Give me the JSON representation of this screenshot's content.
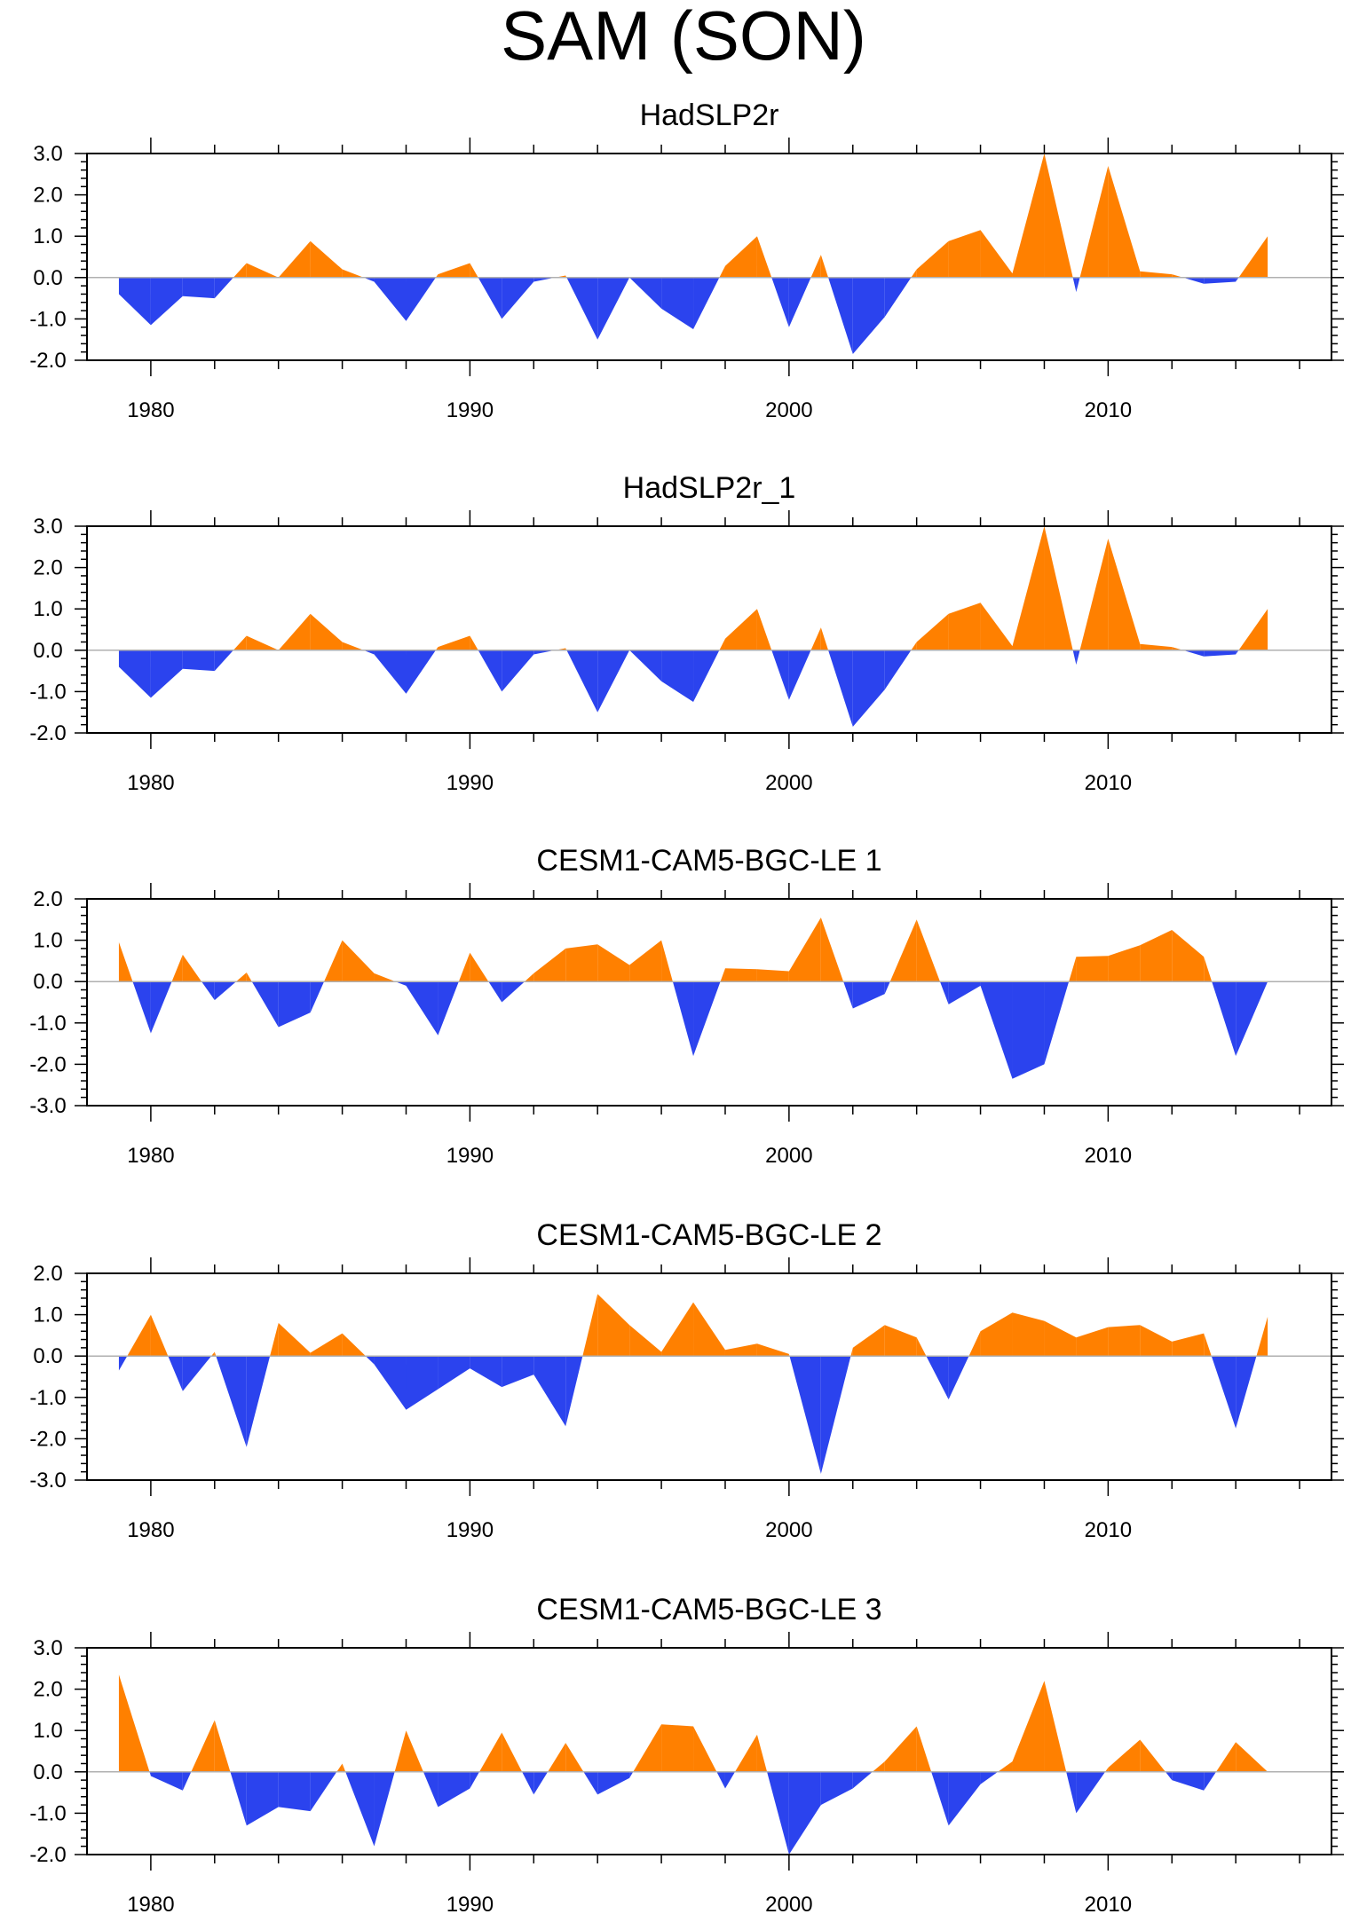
{
  "figure_title": "SAM (SON)",
  "colors": {
    "positive": "#FF8000",
    "negative": "#2B43EE",
    "axis": "#000000",
    "zero_line": "#B0B0B0"
  },
  "chart_data": [
    {
      "type": "area",
      "title": "HadSLP2r",
      "x": [
        1979,
        1980,
        1981,
        1982,
        1983,
        1984,
        1985,
        1986,
        1987,
        1988,
        1989,
        1990,
        1991,
        1992,
        1993,
        1994,
        1995,
        1996,
        1997,
        1998,
        1999,
        2000,
        2001,
        2002,
        2003,
        2004,
        2005,
        2006,
        2007,
        2008,
        2009,
        2010,
        2011,
        2012,
        2013,
        2014,
        2015
      ],
      "values": [
        -0.4,
        -1.15,
        -0.45,
        -0.5,
        0.35,
        0.0,
        0.88,
        0.2,
        -0.1,
        -1.05,
        0.08,
        0.35,
        -1.0,
        -0.1,
        0.05,
        -1.5,
        0.0,
        -0.75,
        -1.25,
        0.28,
        1.0,
        -1.2,
        0.55,
        -1.85,
        -0.95,
        0.2,
        0.88,
        1.15,
        0.1,
        3.0,
        -0.35,
        2.7,
        0.15,
        0.08,
        -0.15,
        -0.1,
        1.0
      ],
      "xlim": [
        1978,
        2017
      ],
      "ylim": [
        -2.0,
        3.0
      ],
      "yticks": [
        "3.0",
        "2.0",
        "1.0",
        "0.0",
        "-1.0",
        "-2.0"
      ],
      "ytick_values": [
        3,
        2,
        1,
        0,
        -1,
        -2
      ],
      "xticks": [
        "1980",
        "1990",
        "2000",
        "2010"
      ],
      "xtick_values": [
        1980,
        1990,
        2000,
        2010
      ]
    },
    {
      "type": "area",
      "title": "HadSLP2r_1",
      "x": [
        1979,
        1980,
        1981,
        1982,
        1983,
        1984,
        1985,
        1986,
        1987,
        1988,
        1989,
        1990,
        1991,
        1992,
        1993,
        1994,
        1995,
        1996,
        1997,
        1998,
        1999,
        2000,
        2001,
        2002,
        2003,
        2004,
        2005,
        2006,
        2007,
        2008,
        2009,
        2010,
        2011,
        2012,
        2013,
        2014,
        2015
      ],
      "values": [
        -0.4,
        -1.15,
        -0.45,
        -0.5,
        0.35,
        0.0,
        0.88,
        0.2,
        -0.1,
        -1.05,
        0.08,
        0.35,
        -1.0,
        -0.1,
        0.05,
        -1.5,
        0.0,
        -0.75,
        -1.25,
        0.28,
        1.0,
        -1.2,
        0.55,
        -1.85,
        -0.95,
        0.2,
        0.88,
        1.15,
        0.1,
        3.0,
        -0.35,
        2.7,
        0.15,
        0.08,
        -0.15,
        -0.1,
        1.0
      ],
      "xlim": [
        1978,
        2017
      ],
      "ylim": [
        -2.0,
        3.0
      ],
      "yticks": [
        "3.0",
        "2.0",
        "1.0",
        "0.0",
        "-1.0",
        "-2.0"
      ],
      "ytick_values": [
        3,
        2,
        1,
        0,
        -1,
        -2
      ],
      "xticks": [
        "1980",
        "1990",
        "2000",
        "2010"
      ],
      "xtick_values": [
        1980,
        1990,
        2000,
        2010
      ]
    },
    {
      "type": "area",
      "title": "CESM1-CAM5-BGC-LE 1",
      "x": [
        1979,
        1980,
        1981,
        1982,
        1983,
        1984,
        1985,
        1986,
        1987,
        1988,
        1989,
        1990,
        1991,
        1992,
        1993,
        1994,
        1995,
        1996,
        1997,
        1998,
        1999,
        2000,
        2001,
        2002,
        2003,
        2004,
        2005,
        2006,
        2007,
        2008,
        2009,
        2010,
        2011,
        2012,
        2013,
        2014,
        2015
      ],
      "values": [
        0.95,
        -1.25,
        0.65,
        -0.45,
        0.22,
        -1.1,
        -0.75,
        1.0,
        0.2,
        -0.1,
        -1.3,
        0.7,
        -0.5,
        0.2,
        0.8,
        0.9,
        0.4,
        1.0,
        -1.8,
        0.32,
        0.3,
        0.25,
        1.55,
        -0.65,
        -0.3,
        1.5,
        -0.55,
        -0.1,
        -2.35,
        -2.0,
        0.6,
        0.62,
        0.88,
        1.25,
        0.6,
        -1.8,
        0.0
      ],
      "xlim": [
        1978,
        2017
      ],
      "ylim": [
        -3.0,
        2.0
      ],
      "yticks": [
        "2.0",
        "1.0",
        "0.0",
        "-1.0",
        "-2.0",
        "-3.0"
      ],
      "ytick_values": [
        2,
        1,
        0,
        -1,
        -2,
        -3
      ],
      "xticks": [
        "1980",
        "1990",
        "2000",
        "2010"
      ],
      "xtick_values": [
        1980,
        1990,
        2000,
        2010
      ]
    },
    {
      "type": "area",
      "title": "CESM1-CAM5-BGC-LE 2",
      "x": [
        1979,
        1980,
        1981,
        1982,
        1983,
        1984,
        1985,
        1986,
        1987,
        1988,
        1989,
        1990,
        1991,
        1992,
        1993,
        1994,
        1995,
        1996,
        1997,
        1998,
        1999,
        2000,
        2001,
        2002,
        2003,
        2004,
        2005,
        2006,
        2007,
        2008,
        2009,
        2010,
        2011,
        2012,
        2013,
        2014,
        2015
      ],
      "values": [
        -0.35,
        1.0,
        -0.85,
        0.1,
        -2.2,
        0.8,
        0.08,
        0.55,
        -0.2,
        -1.3,
        -0.8,
        -0.3,
        -0.75,
        -0.45,
        -1.7,
        1.5,
        0.75,
        0.1,
        1.3,
        0.15,
        0.3,
        0.05,
        -2.85,
        0.2,
        0.75,
        0.45,
        -1.05,
        0.6,
        1.05,
        0.85,
        0.45,
        0.7,
        0.75,
        0.35,
        0.55,
        -1.75,
        0.95
      ],
      "xlim": [
        1978,
        2017
      ],
      "ylim": [
        -3.0,
        2.0
      ],
      "yticks": [
        "2.0",
        "1.0",
        "0.0",
        "-1.0",
        "-2.0",
        "-3.0"
      ],
      "ytick_values": [
        2,
        1,
        0,
        -1,
        -2,
        -3
      ],
      "xticks": [
        "1980",
        "1990",
        "2000",
        "2010"
      ],
      "xtick_values": [
        1980,
        1990,
        2000,
        2010
      ]
    },
    {
      "type": "area",
      "title": "CESM1-CAM5-BGC-LE 3",
      "x": [
        1979,
        1980,
        1981,
        1982,
        1983,
        1984,
        1985,
        1986,
        1987,
        1988,
        1989,
        1990,
        1991,
        1992,
        1993,
        1994,
        1995,
        1996,
        1997,
        1998,
        1999,
        2000,
        2001,
        2002,
        2003,
        2004,
        2005,
        2006,
        2007,
        2008,
        2009,
        2010,
        2011,
        2012,
        2013,
        2014,
        2015
      ],
      "values": [
        2.35,
        -0.1,
        -0.45,
        1.25,
        -1.3,
        -0.85,
        -0.95,
        0.2,
        -1.8,
        1.0,
        -0.85,
        -0.4,
        0.95,
        -0.55,
        0.7,
        -0.55,
        -0.15,
        1.15,
        1.1,
        -0.4,
        0.9,
        -2.0,
        -0.8,
        -0.4,
        0.25,
        1.1,
        -1.3,
        -0.3,
        0.25,
        2.2,
        -1.0,
        0.1,
        0.78,
        -0.2,
        -0.45,
        0.72,
        0.0
      ],
      "xlim": [
        1978,
        2017
      ],
      "ylim": [
        -2.0,
        3.0
      ],
      "yticks": [
        "3.0",
        "2.0",
        "1.0",
        "0.0",
        "-1.0",
        "-2.0"
      ],
      "ytick_values": [
        3,
        2,
        1,
        0,
        -1,
        -2
      ],
      "xticks": [
        "1980",
        "1990",
        "2000",
        "2010"
      ],
      "xtick_values": [
        1980,
        1990,
        2000,
        2010
      ]
    }
  ]
}
